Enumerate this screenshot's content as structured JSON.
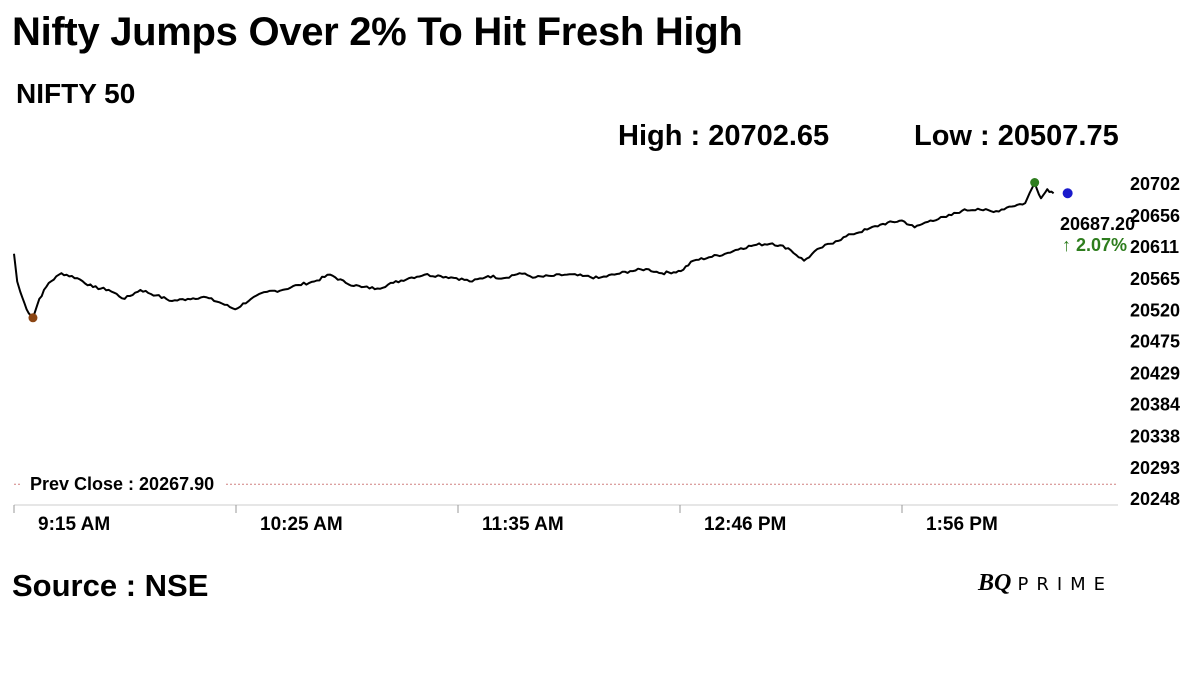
{
  "title": "Nifty Jumps Over 2% To Hit Fresh High",
  "subtitle": "NIFTY 50",
  "high_label": "High : 20702.65",
  "low_label": "Low : 20507.75",
  "source": "Source : NSE",
  "brand": {
    "bq": "BQ",
    "prime": "PRIME"
  },
  "colors": {
    "line": "#000000",
    "high_dot": "#2e7d1e",
    "low_dot": "#8b4513",
    "last_dot": "#1a1acc",
    "change": "#2e7d1e",
    "prev_close": "#d08080"
  },
  "chart_data": {
    "type": "line",
    "title": "NIFTY 50",
    "xlabel": "",
    "ylabel": "",
    "ylim": [
      20248,
      20720
    ],
    "x_ticks": [
      "9:15 AM",
      "10:25 AM",
      "11:35 AM",
      "12:46 PM",
      "1:56 PM"
    ],
    "y_ticks": [
      "20702",
      "20656",
      "20611",
      "20565",
      "20520",
      "20475",
      "20429",
      "20384",
      "20338",
      "20293",
      "20248"
    ],
    "prev_close": 20267.9,
    "prev_close_label": "Prev Close : 20267.90",
    "high": 20702.65,
    "low": 20507.75,
    "last_value_label": "20687.20",
    "change_label": "↑ 2.07%",
    "series": [
      {
        "x": [
          "9:15",
          "9:16",
          "9:17",
          "9:19",
          "9:21",
          "9:23",
          "9:26",
          "9:30",
          "9:35",
          "9:40",
          "9:45",
          "9:50",
          "9:55",
          "10:00",
          "10:05",
          "10:10",
          "10:15",
          "10:20",
          "10:25",
          "10:30",
          "10:35",
          "10:40",
          "10:45",
          "10:50",
          "10:55",
          "11:00",
          "11:05",
          "11:10",
          "11:15",
          "11:20",
          "11:25",
          "11:30",
          "11:35",
          "11:40",
          "11:45",
          "11:50",
          "11:55",
          "12:00",
          "12:05",
          "12:10",
          "12:15",
          "12:20",
          "12:25",
          "12:30",
          "12:35",
          "12:40",
          "12:46",
          "12:50",
          "12:55",
          "13:00",
          "13:05",
          "13:10",
          "13:15",
          "13:20",
          "13:25",
          "13:30",
          "13:35",
          "13:40",
          "13:45",
          "13:50",
          "13:56",
          "14:00",
          "14:05",
          "14:10",
          "14:15",
          "14:20",
          "14:25",
          "14:30",
          "14:35",
          "14:38",
          "14:40",
          "14:42",
          "14:44"
        ],
        "values": [
          20600,
          20560,
          20545,
          20520,
          20507.75,
          20535,
          20558,
          20572,
          20565,
          20552,
          20548,
          20535,
          20548,
          20540,
          20532,
          20535,
          20538,
          20530,
          20520,
          20535,
          20545,
          20548,
          20555,
          20560,
          20570,
          20558,
          20552,
          20550,
          20558,
          20565,
          20570,
          20568,
          20565,
          20560,
          20568,
          20565,
          20572,
          20566,
          20568,
          20570,
          20568,
          20565,
          20570,
          20575,
          20578,
          20572,
          20575,
          20590,
          20595,
          20600,
          20608,
          20613,
          20615,
          20608,
          20590,
          20608,
          20618,
          20628,
          20635,
          20643,
          20648,
          20638,
          20648,
          20653,
          20662,
          20665,
          20660,
          20668,
          20673,
          20702.65,
          20680,
          20693,
          20687.2
        ]
      }
    ]
  }
}
